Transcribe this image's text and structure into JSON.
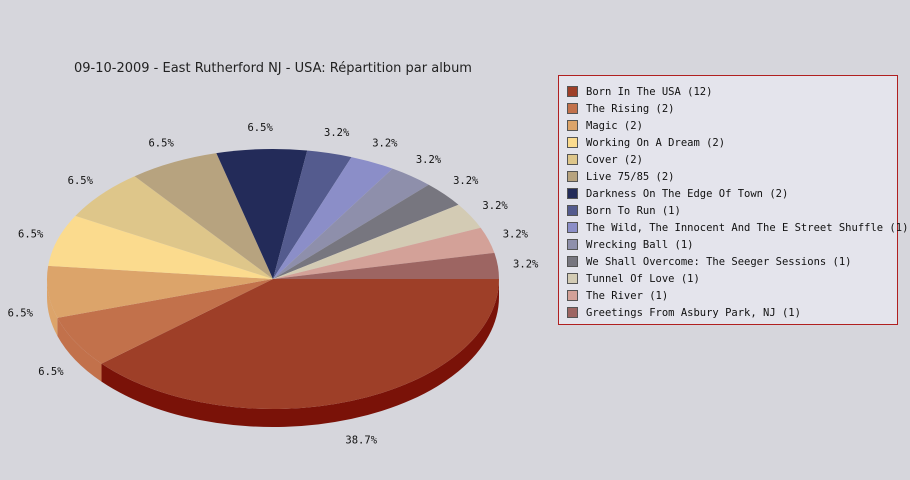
{
  "chart_data": {
    "type": "pie",
    "title": "09-10-2009 - East Rutherford NJ - USA:  Répartition par album",
    "categories": [
      "Born In The USA (12)",
      "The Rising (2)",
      "Magic (2)",
      "Working On A Dream (2)",
      "Cover (2)",
      "Live 75/85 (2)",
      "Darkness On The Edge Of Town (2)",
      "Born To Run (1)",
      "The Wild, The Innocent And The E Street Shuffle (1)",
      "Wrecking Ball (1)",
      "We Shall Overcome: The Seeger Sessions (1)",
      "Tunnel Of Love (1)",
      "The River (1)",
      "Greetings From Asbury Park, NJ (1)"
    ],
    "values": [
      12,
      2,
      2,
      2,
      2,
      2,
      2,
      1,
      1,
      1,
      1,
      1,
      1,
      1
    ],
    "labels": [
      "38.7%",
      "6.5%",
      "6.5%",
      "6.5%",
      "6.5%",
      "6.5%",
      "6.5%",
      "3.2%",
      "3.2%",
      "3.2%",
      "3.2%",
      "3.2%",
      "3.2%",
      "3.2%"
    ],
    "colors": [
      "#9e3f28",
      "#c2714b",
      "#dca46a",
      "#fbdb8e",
      "#dec68a",
      "#b7a37f",
      "#232b59",
      "#545b8e",
      "#8b8ec8",
      "#8e8fab",
      "#77767f",
      "#d3cbb4",
      "#d3a198",
      "#9d6562"
    ],
    "side_color": "#7a1208",
    "legend_position": "right"
  }
}
